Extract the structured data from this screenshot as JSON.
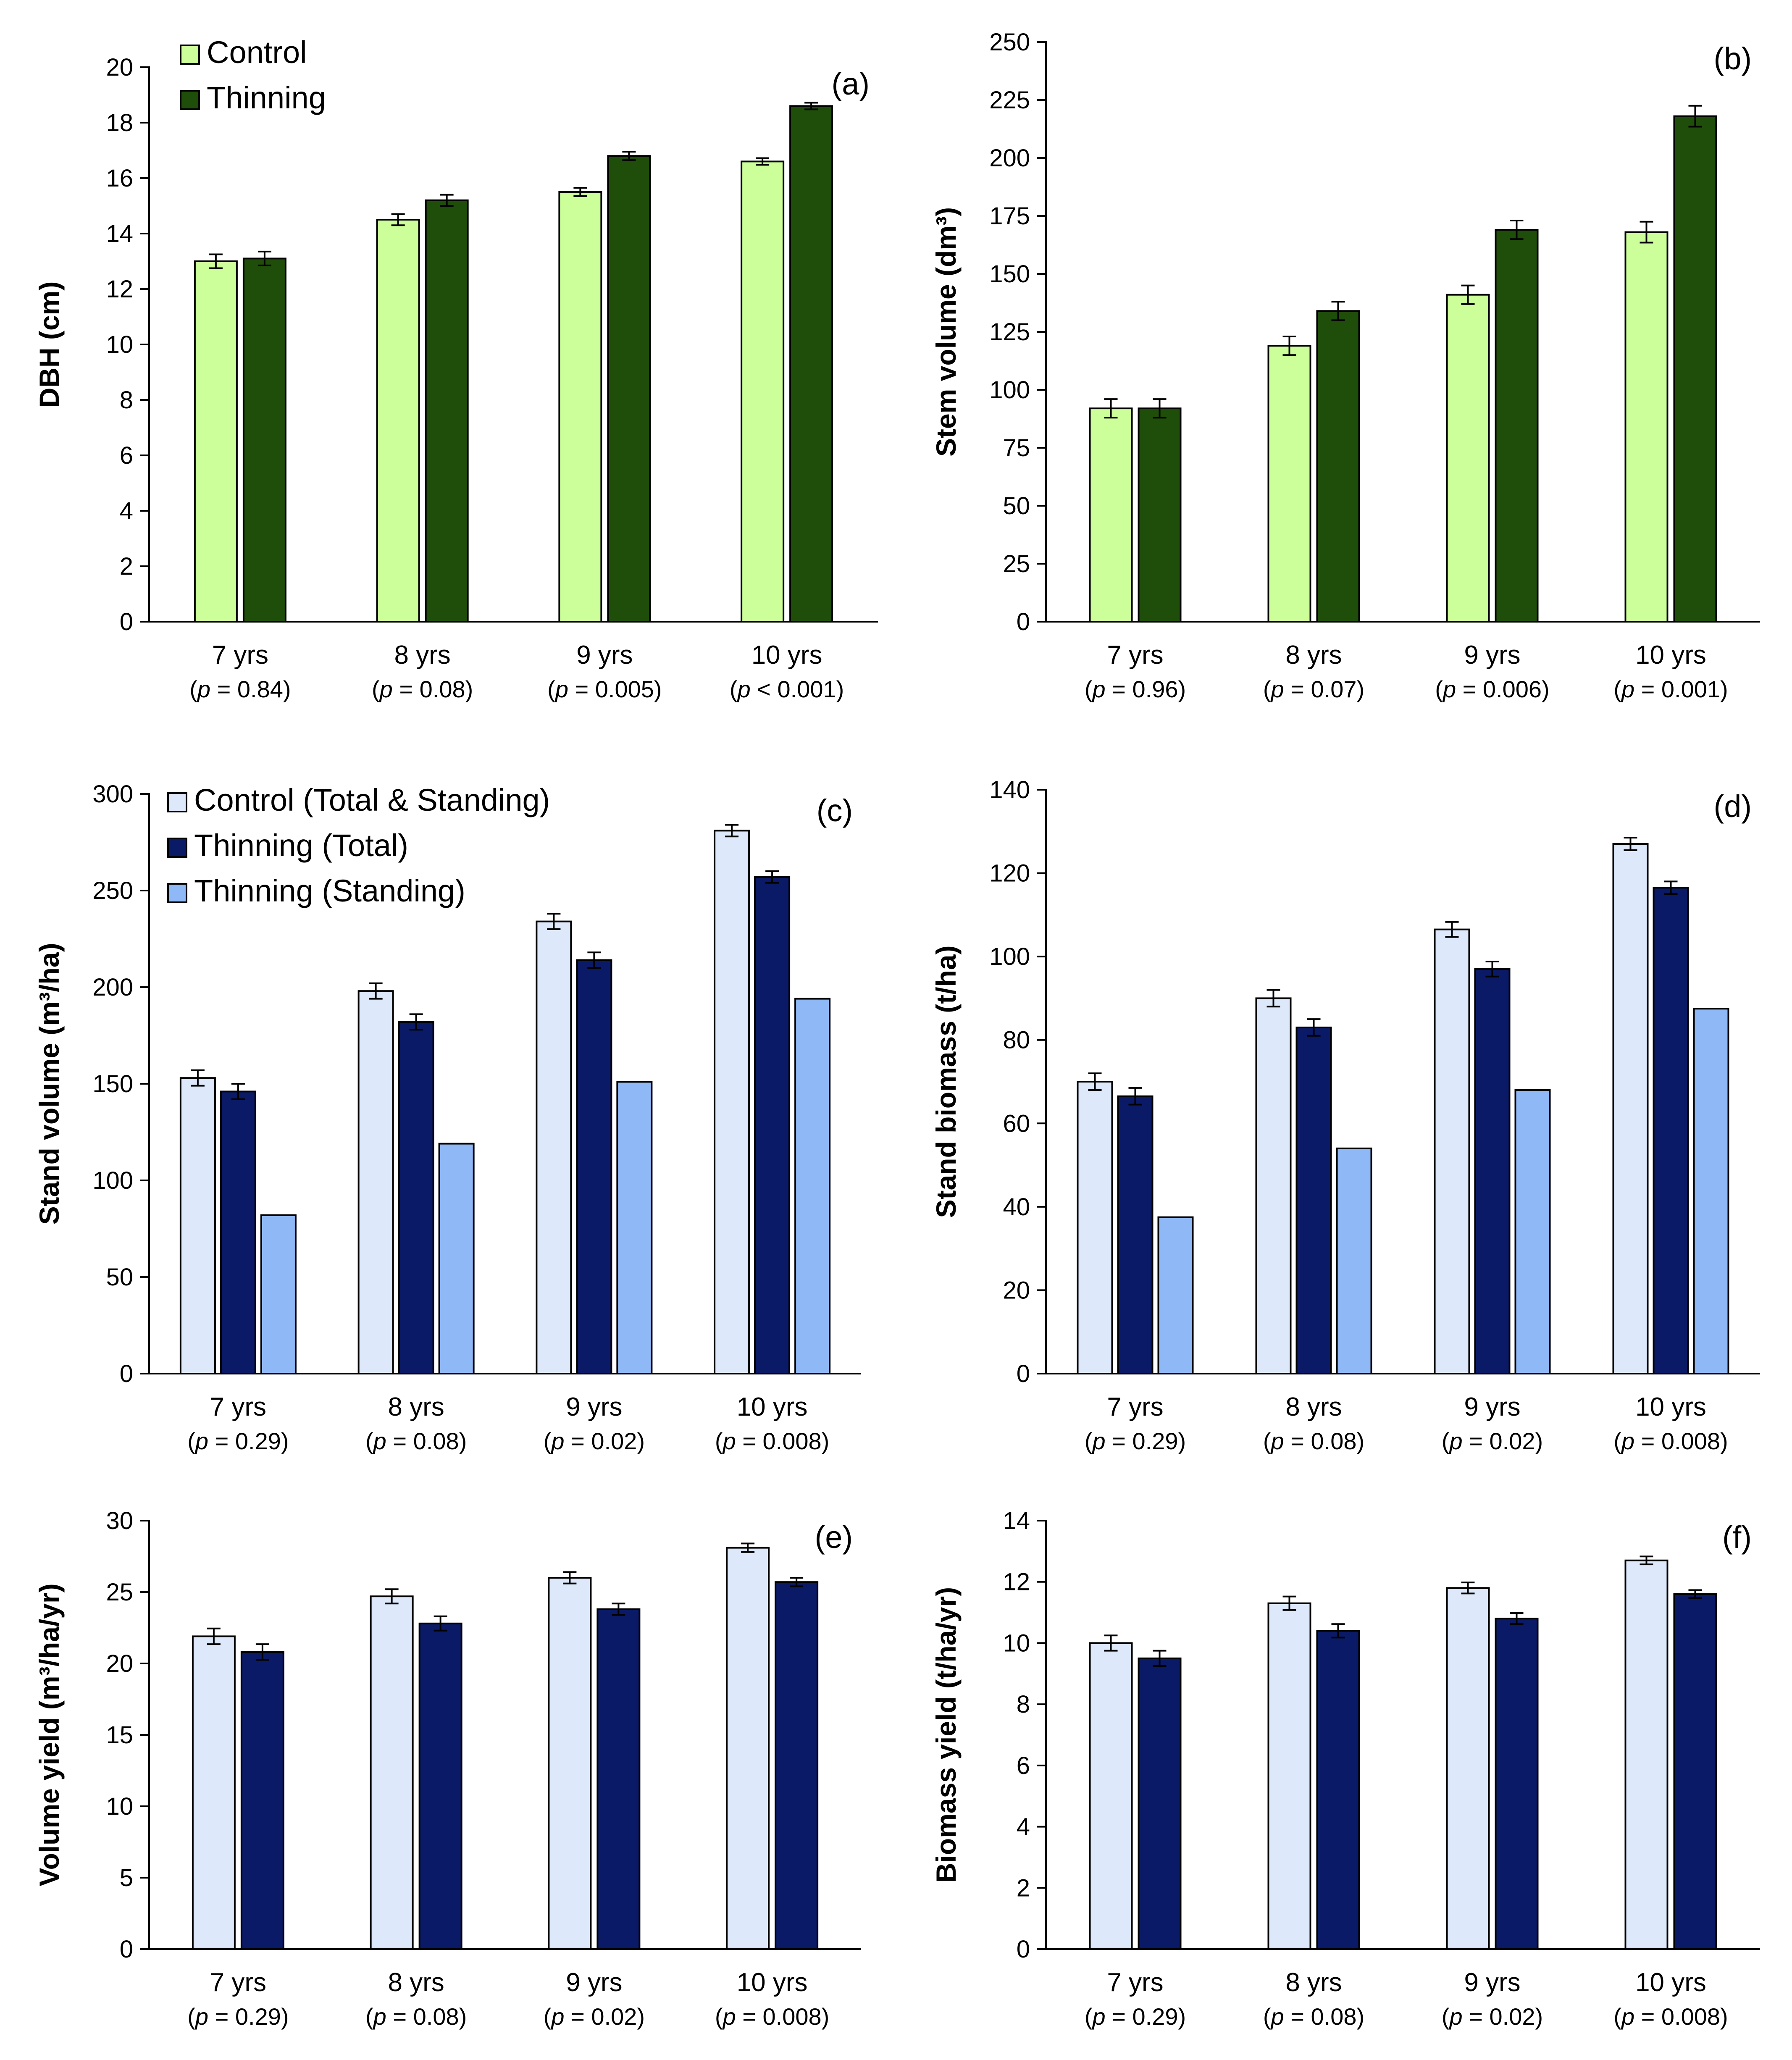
{
  "chart_data": [
    {
      "id": "a",
      "type": "bar",
      "tag": "(a)",
      "ylabel": "DBH (cm)",
      "ylim": [
        0,
        20
      ],
      "yticks": [
        0,
        2,
        4,
        6,
        8,
        10,
        12,
        14,
        16,
        18,
        20
      ],
      "categories": [
        "7 yrs",
        "8 yrs",
        "9 yrs",
        "10 yrs"
      ],
      "pvalues": [
        [
          "(",
          "p",
          " = 0.84)"
        ],
        [
          "(",
          "p",
          " = 0.08)"
        ],
        [
          "(",
          "p",
          " = 0.005)"
        ],
        [
          "(",
          "p",
          " < 0.001)"
        ]
      ],
      "legend": {
        "position": "top-left"
      },
      "series": [
        {
          "name": "Control",
          "color": "#ccff99",
          "values": [
            13.0,
            14.5,
            15.5,
            16.6
          ],
          "errors": [
            0.25,
            0.2,
            0.15,
            0.12
          ]
        },
        {
          "name": "Thinning",
          "color": "#1f4e0a",
          "values": [
            13.1,
            15.2,
            16.8,
            18.6
          ],
          "errors": [
            0.25,
            0.2,
            0.15,
            0.12
          ]
        }
      ]
    },
    {
      "id": "b",
      "type": "bar",
      "tag": "(b)",
      "ylabel": "Stem volume (dm³)",
      "ylim": [
        0,
        250
      ],
      "yticks": [
        0,
        25,
        50,
        75,
        100,
        125,
        150,
        175,
        200,
        225,
        250
      ],
      "categories": [
        "7 yrs",
        "8 yrs",
        "9 yrs",
        "10 yrs"
      ],
      "pvalues": [
        [
          "(",
          "p",
          " = 0.96)"
        ],
        [
          "(",
          "p",
          " = 0.07)"
        ],
        [
          "(",
          "p",
          " = 0.006)"
        ],
        [
          "(",
          "p",
          " = 0.001)"
        ]
      ],
      "legend": null,
      "series": [
        {
          "name": "Control",
          "color": "#ccff99",
          "values": [
            92,
            119,
            141,
            168
          ],
          "errors": [
            4,
            4,
            4,
            4.5
          ]
        },
        {
          "name": "Thinning",
          "color": "#1f4e0a",
          "values": [
            92,
            134,
            169,
            218
          ],
          "errors": [
            4,
            4,
            4,
            4.5
          ]
        }
      ]
    },
    {
      "id": "c",
      "type": "bar",
      "tag": "(c)",
      "ylabel": "Stand volume (m³/ha)",
      "ylim": [
        0,
        300
      ],
      "yticks": [
        0,
        50,
        100,
        150,
        200,
        250,
        300
      ],
      "categories": [
        "7 yrs",
        "8 yrs",
        "9 yrs",
        "10 yrs"
      ],
      "pvalues": [
        [
          "(",
          "p",
          " = 0.29)"
        ],
        [
          "(",
          "p",
          " = 0.08)"
        ],
        [
          "(",
          "p",
          " = 0.02)"
        ],
        [
          "(",
          "p",
          " = 0.008)"
        ]
      ],
      "legend": {
        "position": "top-left"
      },
      "series": [
        {
          "name": "Control (Total & Standing)",
          "color": "#dde9fb",
          "values": [
            153,
            198,
            234,
            281
          ],
          "errors": [
            4,
            4,
            4,
            3
          ]
        },
        {
          "name": "Thinning (Total)",
          "color": "#0a1a66",
          "values": [
            146,
            182,
            214,
            257
          ],
          "errors": [
            4,
            4,
            4,
            3
          ]
        },
        {
          "name": "Thinning (Standing)",
          "color": "#8fb8f7",
          "values": [
            82,
            119,
            151,
            194
          ],
          "errors": null
        }
      ]
    },
    {
      "id": "d",
      "type": "bar",
      "tag": "(d)",
      "ylabel": "Stand biomass (t/ha)",
      "ylim": [
        0,
        140
      ],
      "yticks": [
        0,
        20,
        40,
        60,
        80,
        100,
        120,
        140
      ],
      "categories": [
        "7 yrs",
        "8 yrs",
        "9 yrs",
        "10 yrs"
      ],
      "pvalues": [
        [
          "(",
          "p",
          " = 0.29)"
        ],
        [
          "(",
          "p",
          " = 0.08)"
        ],
        [
          "(",
          "p",
          " = 0.02)"
        ],
        [
          "(",
          "p",
          " = 0.008)"
        ]
      ],
      "legend": null,
      "series": [
        {
          "name": "Control (Total & Standing)",
          "color": "#dde9fb",
          "values": [
            70,
            90,
            106.5,
            127
          ],
          "errors": [
            2,
            2,
            1.8,
            1.5
          ]
        },
        {
          "name": "Thinning (Total)",
          "color": "#0a1a66",
          "values": [
            66.5,
            83,
            97,
            116.5
          ],
          "errors": [
            2,
            2,
            1.8,
            1.5
          ]
        },
        {
          "name": "Thinning (Standing)",
          "color": "#8fb8f7",
          "values": [
            37.5,
            54,
            68,
            87.5
          ],
          "errors": null
        }
      ]
    },
    {
      "id": "e",
      "type": "bar",
      "tag": "(e)",
      "ylabel": "Volume yield (m³/ha/yr)",
      "ylim": [
        0,
        30
      ],
      "yticks": [
        0,
        5,
        10,
        15,
        20,
        25,
        30
      ],
      "categories": [
        "7 yrs",
        "8 yrs",
        "9 yrs",
        "10 yrs"
      ],
      "pvalues": [
        [
          "(",
          "p",
          " = 0.29)"
        ],
        [
          "(",
          "p",
          " = 0.08)"
        ],
        [
          "(",
          "p",
          " = 0.02)"
        ],
        [
          "(",
          "p",
          " = 0.008)"
        ]
      ],
      "legend": null,
      "series": [
        {
          "name": "Control",
          "color": "#dde9fb",
          "values": [
            21.9,
            24.7,
            26.0,
            28.1
          ],
          "errors": [
            0.55,
            0.5,
            0.4,
            0.3
          ]
        },
        {
          "name": "Thinning",
          "color": "#0a1a66",
          "values": [
            20.8,
            22.8,
            23.8,
            25.7
          ],
          "errors": [
            0.55,
            0.5,
            0.4,
            0.3
          ]
        }
      ]
    },
    {
      "id": "f",
      "type": "bar",
      "tag": "(f)",
      "ylabel": "Biomass yield (t/ha/yr)",
      "ylim": [
        0,
        14
      ],
      "yticks": [
        0,
        2,
        4,
        6,
        8,
        10,
        12,
        14
      ],
      "categories": [
        "7 yrs",
        "8 yrs",
        "9 yrs",
        "10 yrs"
      ],
      "pvalues": [
        [
          "(",
          "p",
          " = 0.29)"
        ],
        [
          "(",
          "p",
          " = 0.08)"
        ],
        [
          "(",
          "p",
          " = 0.02)"
        ],
        [
          "(",
          "p",
          " = 0.008)"
        ]
      ],
      "legend": null,
      "series": [
        {
          "name": "Control",
          "color": "#dde9fb",
          "values": [
            10.0,
            11.3,
            11.8,
            12.7
          ],
          "errors": [
            0.25,
            0.22,
            0.18,
            0.13
          ]
        },
        {
          "name": "Thinning",
          "color": "#0a1a66",
          "values": [
            9.5,
            10.4,
            10.8,
            11.6
          ],
          "errors": [
            0.25,
            0.22,
            0.18,
            0.13
          ]
        }
      ]
    }
  ]
}
